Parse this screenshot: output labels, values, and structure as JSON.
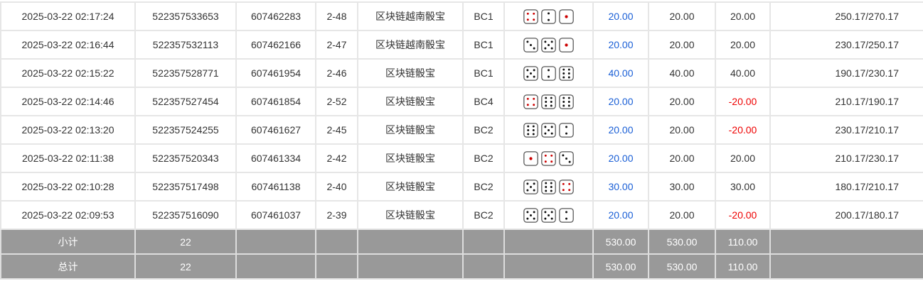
{
  "rows": [
    {
      "time": "2025-03-22 02:17:24",
      "order": "522357533653",
      "round": "607462283",
      "game_no": "2-48",
      "game": "区块链越南骰宝",
      "table": "BC1",
      "dice": [
        4,
        2,
        1
      ],
      "bet": "20.00",
      "valid": "20.00",
      "win": "20.00",
      "balance": "250.17/270.17"
    },
    {
      "time": "2025-03-22 02:16:44",
      "order": "522357532113",
      "round": "607462166",
      "game_no": "2-47",
      "game": "区块链越南骰宝",
      "table": "BC1",
      "dice": [
        3,
        5,
        1
      ],
      "bet": "20.00",
      "valid": "20.00",
      "win": "20.00",
      "balance": "230.17/250.17"
    },
    {
      "time": "2025-03-22 02:15:22",
      "order": "522357528771",
      "round": "607461954",
      "game_no": "2-46",
      "game": "区块链骰宝",
      "table": "BC1",
      "dice": [
        5,
        2,
        6
      ],
      "bet": "40.00",
      "valid": "40.00",
      "win": "40.00",
      "balance": "190.17/230.17"
    },
    {
      "time": "2025-03-22 02:14:46",
      "order": "522357527454",
      "round": "607461854",
      "game_no": "2-52",
      "game": "区块链骰宝",
      "table": "BC4",
      "dice": [
        4,
        6,
        6
      ],
      "bet": "20.00",
      "valid": "20.00",
      "win": "-20.00",
      "balance": "210.17/190.17"
    },
    {
      "time": "2025-03-22 02:13:20",
      "order": "522357524255",
      "round": "607461627",
      "game_no": "2-45",
      "game": "区块链骰宝",
      "table": "BC2",
      "dice": [
        6,
        5,
        2
      ],
      "bet": "20.00",
      "valid": "20.00",
      "win": "-20.00",
      "balance": "230.17/210.17"
    },
    {
      "time": "2025-03-22 02:11:38",
      "order": "522357520343",
      "round": "607461334",
      "game_no": "2-42",
      "game": "区块链骰宝",
      "table": "BC2",
      "dice": [
        1,
        4,
        3
      ],
      "bet": "20.00",
      "valid": "20.00",
      "win": "20.00",
      "balance": "210.17/230.17"
    },
    {
      "time": "2025-03-22 02:10:28",
      "order": "522357517498",
      "round": "607461138",
      "game_no": "2-40",
      "game": "区块链骰宝",
      "table": "BC2",
      "dice": [
        5,
        6,
        4
      ],
      "bet": "30.00",
      "valid": "30.00",
      "win": "30.00",
      "balance": "180.17/210.17"
    },
    {
      "time": "2025-03-22 02:09:53",
      "order": "522357516090",
      "round": "607461037",
      "game_no": "2-39",
      "game": "区块链骰宝",
      "table": "BC2",
      "dice": [
        5,
        5,
        2
      ],
      "bet": "20.00",
      "valid": "20.00",
      "win": "-20.00",
      "balance": "200.17/180.17"
    }
  ],
  "summary": [
    {
      "label": "小计",
      "count": "22",
      "bet": "530.00",
      "valid": "530.00",
      "win": "110.00"
    },
    {
      "label": "总计",
      "count": "22",
      "bet": "530.00",
      "valid": "530.00",
      "win": "110.00"
    }
  ],
  "colors": {
    "bet": "#1a5fd6",
    "negative": "#e00000",
    "summary_bg": "#999999"
  }
}
